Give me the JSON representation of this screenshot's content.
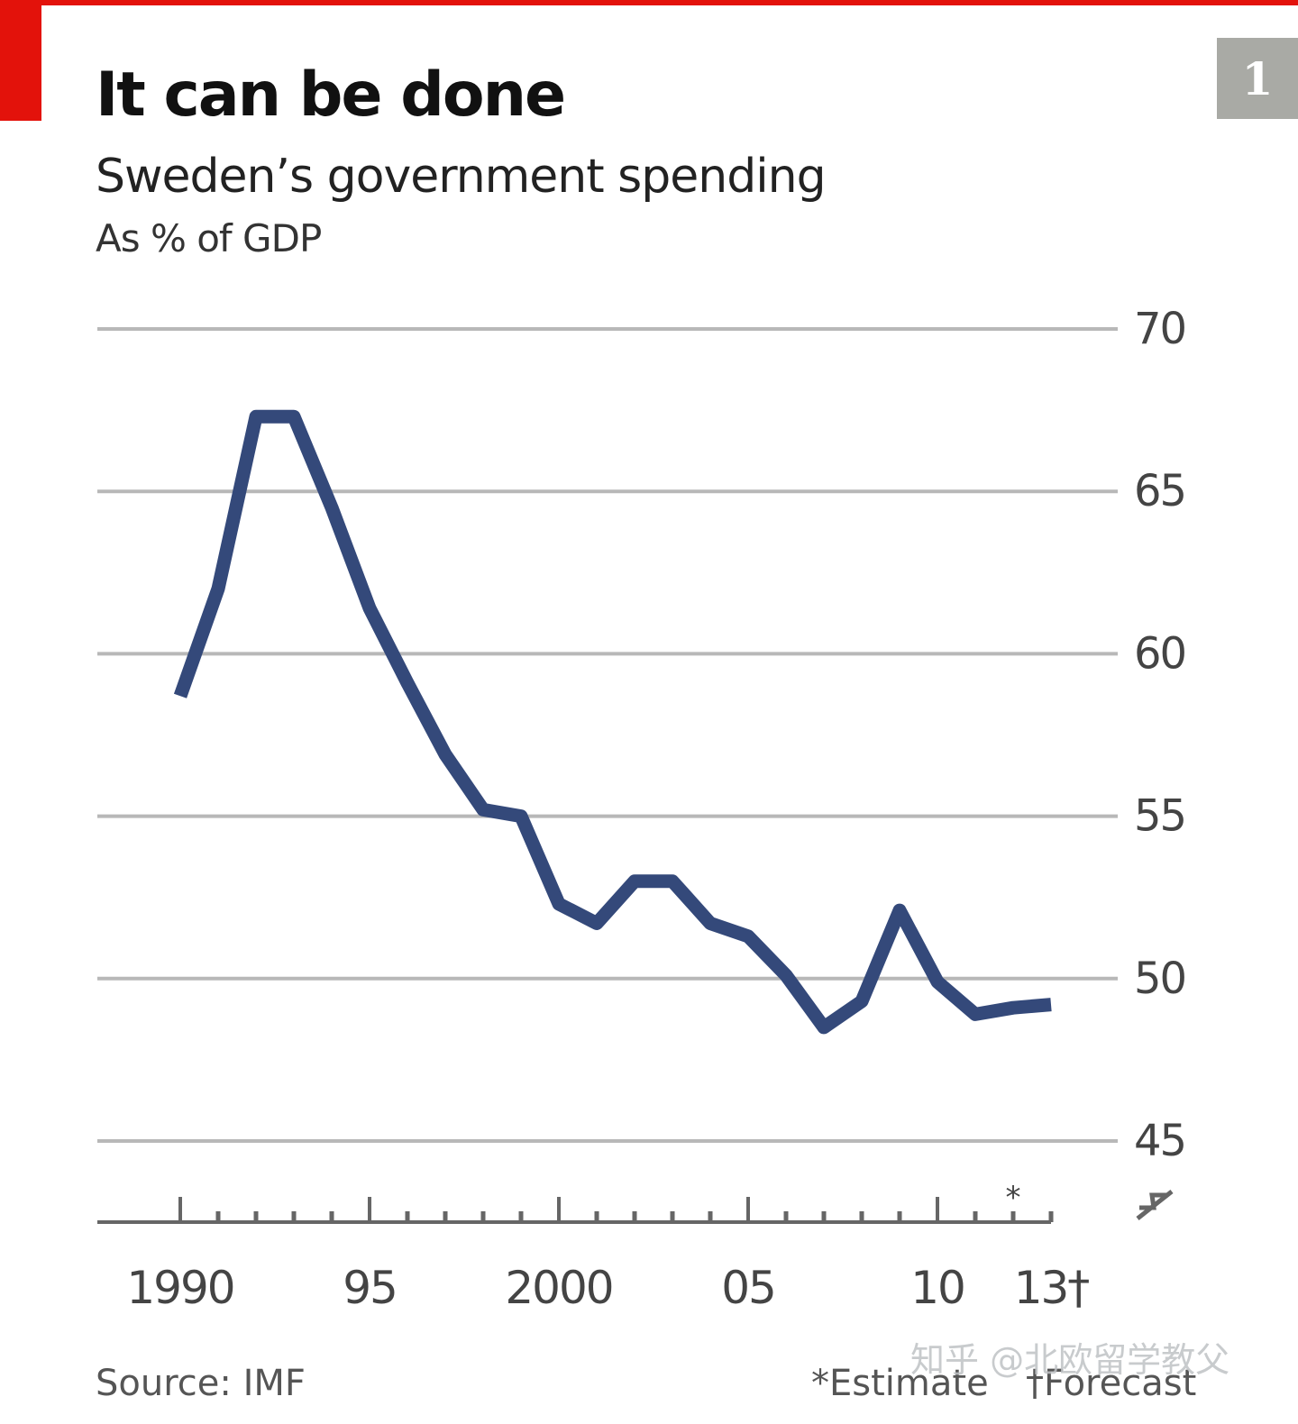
{
  "header": {
    "title": "It can be done",
    "subtitle": "Sweden’s government spending",
    "unit": "As % of GDP",
    "chart_number": "1"
  },
  "footer": {
    "source": "Source: IMF",
    "estimate_note": "*Estimate",
    "forecast_note": "†Forecast"
  },
  "watermark": "知乎 @北欧留学教父",
  "colors": {
    "accent": "#e3120b",
    "line": "#34497a",
    "grid": "#b8b8b8",
    "badge": "#a9aaa5"
  },
  "chart_data": {
    "type": "line",
    "title": "It can be done",
    "subtitle": "Sweden’s government spending",
    "ylabel": "As % of GDP",
    "xlabel": "",
    "ylim": [
      45,
      70
    ],
    "xlim": [
      1989.6,
      2014.6
    ],
    "yticks": [
      45,
      50,
      55,
      60,
      65,
      70
    ],
    "xtick_labels": [
      {
        "year": 1990,
        "label": "1990"
      },
      {
        "year": 1995,
        "label": "95"
      },
      {
        "year": 2000,
        "label": "2000"
      },
      {
        "year": 2005,
        "label": "05"
      },
      {
        "year": 2010,
        "label": "10"
      },
      {
        "year": 2013,
        "label": "13†"
      }
    ],
    "estimate_year": 2012,
    "y_axis_position": "right",
    "grid": true,
    "axis_break": true,
    "series": [
      {
        "x": [
          1990,
          1991,
          1992,
          1993,
          1994,
          1995,
          1996,
          1997,
          1998,
          1999,
          2000,
          2001,
          2002,
          2003,
          2004,
          2005,
          2006,
          2007,
          2008,
          2009,
          2010,
          2011,
          2012,
          2013
        ],
        "values": [
          58.7,
          62.0,
          67.3,
          67.3,
          64.5,
          61.4,
          59.1,
          56.9,
          55.2,
          55.0,
          52.3,
          51.7,
          53.0,
          53.0,
          51.7,
          51.3,
          50.1,
          48.5,
          49.3,
          52.1,
          49.9,
          48.9,
          49.1,
          49.2
        ]
      }
    ]
  }
}
